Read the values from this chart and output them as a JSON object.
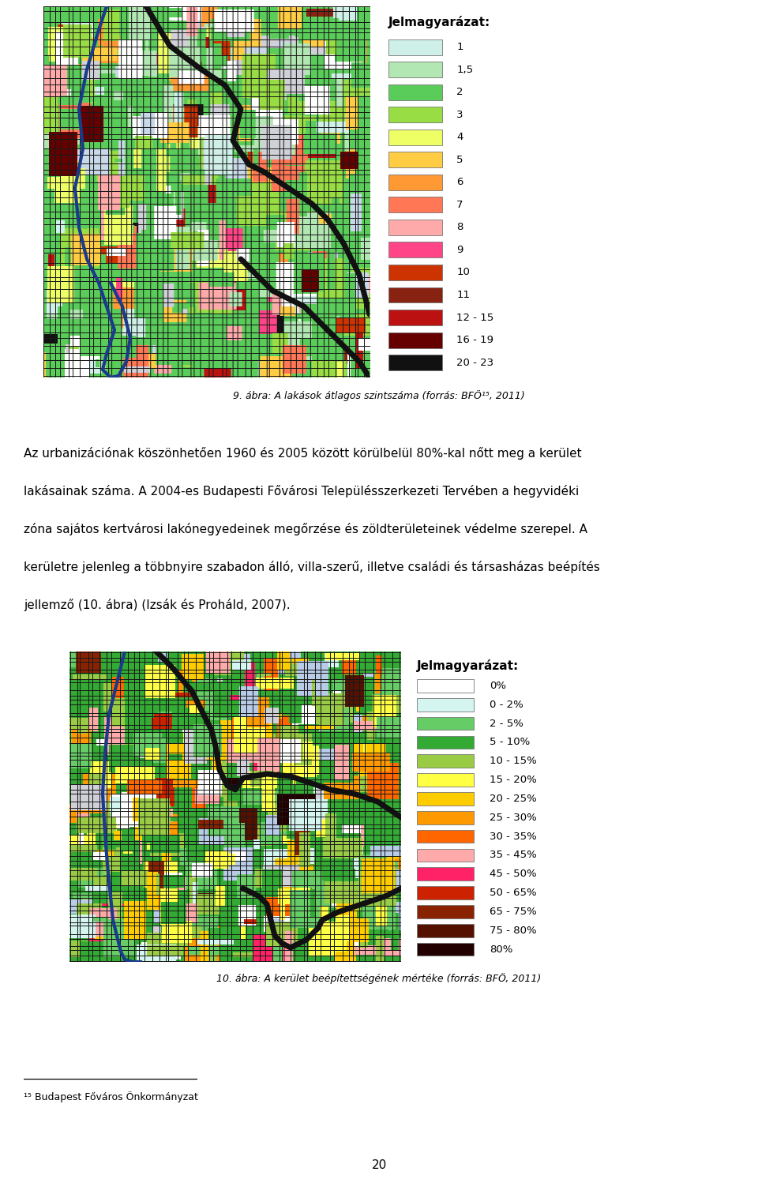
{
  "page_width": 9.6,
  "page_height": 15.17,
  "bg_color": "#ffffff",
  "map1_legend_title": "Jelmagyarázat:",
  "map1_legend_items": [
    {
      "label": "1",
      "color": "#cff0e8"
    },
    {
      "label": "1,5",
      "color": "#b2e6b2"
    },
    {
      "label": "2",
      "color": "#5acc5a"
    },
    {
      "label": "3",
      "color": "#99dd44"
    },
    {
      "label": "4",
      "color": "#eeff66"
    },
    {
      "label": "5",
      "color": "#ffcc44"
    },
    {
      "label": "6",
      "color": "#ff9933"
    },
    {
      "label": "7",
      "color": "#ff7755"
    },
    {
      "label": "8",
      "color": "#ffaaaa"
    },
    {
      "label": "9",
      "color": "#ff4488"
    },
    {
      "label": "10",
      "color": "#cc3300"
    },
    {
      "label": "11",
      "color": "#882211"
    },
    {
      "label": "12 - 15",
      "color": "#bb1111"
    },
    {
      "label": "16 - 19",
      "color": "#660000"
    },
    {
      "label": "20 - 23",
      "color": "#111111"
    }
  ],
  "map1_caption": "9. ábra: A lakások átlagos szintszáma (forrás: BFÖ¹⁵, 2011)",
  "paragraph_lines": [
    "Az urbanizációnak köszönhetően 1960 és 2005 között körülbelül 80%-kal nőtt meg a kerület",
    "lakásainak száma. A 2004-es Budapesti Fővárosi Településszerkezeti Tervében a hegyvidéki",
    "zóna sajátos kertvárosi lakónegyedeinek megőrzése és zöldterületeinek védelme szerepel. A",
    "kerületre jelenleg a többnyire szabadon álló, villa-szerű, illetve családi és társasházas beépítés",
    "jellemző (10. ábra) (Izsák és Proháld, 2007)."
  ],
  "map2_legend_title": "Jelmagyarázat:",
  "map2_legend_items": [
    {
      "label": "0%",
      "color": "#ffffff"
    },
    {
      "label": "0 - 2%",
      "color": "#d4f5f0"
    },
    {
      "label": "2 - 5%",
      "color": "#66cc66"
    },
    {
      "label": "5 - 10%",
      "color": "#33aa33"
    },
    {
      "label": "10 - 15%",
      "color": "#99cc44"
    },
    {
      "label": "15 - 20%",
      "color": "#ffff44"
    },
    {
      "label": "20 - 25%",
      "color": "#ffcc00"
    },
    {
      "label": "25 - 30%",
      "color": "#ff9900"
    },
    {
      "label": "30 - 35%",
      "color": "#ff6600"
    },
    {
      "label": "35 - 45%",
      "color": "#ffaaaa"
    },
    {
      "label": "45 - 50%",
      "color": "#ff2266"
    },
    {
      "label": "50 - 65%",
      "color": "#cc2200"
    },
    {
      "label": "65 - 75%",
      "color": "#882200"
    },
    {
      "label": "75 - 80%",
      "color": "#551100"
    },
    {
      "label": "80%",
      "color": "#220000"
    }
  ],
  "map2_caption": "10. ábra: A kerület beépítettségének mértéke (forrás: BFÖ, 2011)",
  "footnote": "¹⁵ Budapest Főváros Önkormányzat",
  "page_number": "20"
}
